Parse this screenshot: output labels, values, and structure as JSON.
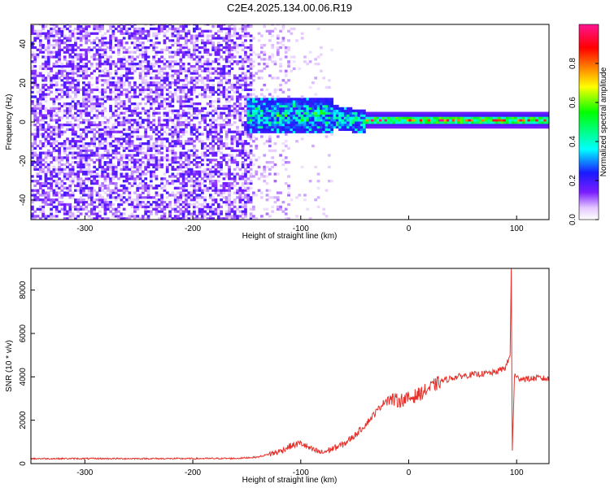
{
  "figure_title": "C2E4.2025.134.00.06.R19",
  "chart_data": [
    {
      "type": "heatmap",
      "xlabel": "Height of straight line (km)",
      "ylabel": "Frequency (Hz)",
      "xlim": [
        -350,
        130
      ],
      "ylim": [
        -50,
        50
      ],
      "x_ticks": [
        "-300",
        "-200",
        "-100",
        "0",
        "100"
      ],
      "x_tick_values": [
        -300,
        -200,
        -100,
        0,
        100
      ],
      "y_ticks": [
        "-40",
        "-20",
        "0",
        "20",
        "40"
      ],
      "y_tick_values": [
        -40,
        -20,
        0,
        20,
        40
      ],
      "colorbar": {
        "label": "Normalized spectral amplitude",
        "ticks": [
          "0.0",
          "0.2",
          "0.4",
          "0.6",
          "0.8"
        ],
        "tick_values": [
          0.0,
          0.2,
          0.4,
          0.6,
          0.8
        ],
        "range": [
          0,
          1
        ],
        "colors": [
          "#ffffff",
          "#e4c8ff",
          "#7a1dff",
          "#1a1aff",
          "#00ffff",
          "#00ff00",
          "#ffff00",
          "#ff8000",
          "#ff0000",
          "#ff1493"
        ]
      },
      "regions": [
        {
          "description_x": [
            -350,
            -140
          ],
          "freq_range": [
            -50,
            50
          ],
          "level": 0.1
        },
        {
          "description_x": [
            -150,
            -40
          ],
          "freq_range": [
            -8,
            12
          ],
          "level": 0.45
        },
        {
          "description_x": [
            -40,
            130
          ],
          "freq_range": [
            -3,
            4
          ],
          "level": 0.35
        },
        {
          "description_x": [
            -40,
            130
          ],
          "freq_range": [
            0,
            1.5
          ],
          "level": 0.95
        }
      ]
    },
    {
      "type": "line",
      "xlabel": "Height of straight line (km)",
      "ylabel": "SNR (10 * v/v)",
      "xlim": [
        -350,
        130
      ],
      "ylim": [
        0,
        9000
      ],
      "x_ticks": [
        "-300",
        "-200",
        "-100",
        "0",
        "100"
      ],
      "x_tick_values": [
        -300,
        -200,
        -100,
        0,
        100
      ],
      "y_ticks": [
        "0",
        "2000",
        "4000",
        "6000",
        "8000"
      ],
      "y_tick_values": [
        0,
        2000,
        4000,
        6000,
        8000
      ],
      "series": [
        {
          "color": "#e8302a",
          "x": [
            -350,
            -300,
            -250,
            -200,
            -160,
            -140,
            -120,
            -110,
            -100,
            -90,
            -80,
            -70,
            -60,
            -50,
            -40,
            -30,
            -20,
            -10,
            0,
            10,
            20,
            30,
            40,
            50,
            60,
            70,
            80,
            90,
            94,
            95,
            96,
            98,
            100,
            110,
            120,
            130
          ],
          "y": [
            230,
            230,
            230,
            230,
            240,
            300,
            550,
            800,
            950,
            650,
            500,
            700,
            900,
            1300,
            1800,
            2400,
            3000,
            2900,
            3000,
            3200,
            3500,
            3800,
            3950,
            4050,
            4100,
            4150,
            4200,
            4450,
            5000,
            9000,
            600,
            4100,
            3950,
            3900,
            3950,
            3900
          ]
        }
      ]
    }
  ]
}
